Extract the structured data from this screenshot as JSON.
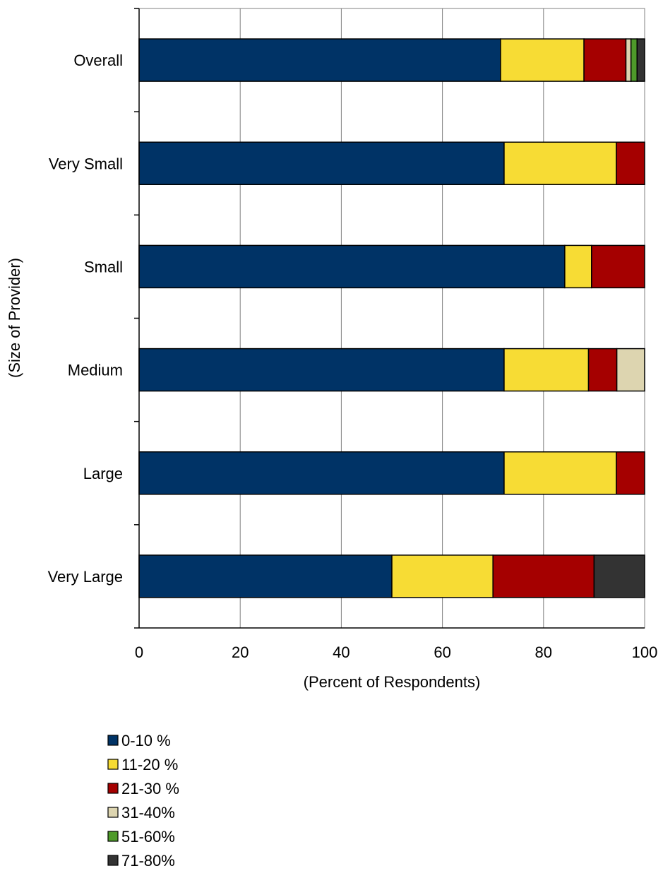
{
  "chart_data": {
    "type": "bar",
    "orientation": "horizontal",
    "stacked": true,
    "categories": [
      "Overall",
      "Very Small",
      "Small",
      "Medium",
      "Large",
      "Very Large"
    ],
    "series": [
      {
        "name": "0-10 %",
        "color": "#003366",
        "values": [
          71.5,
          72.2,
          84.2,
          72.2,
          72.2,
          50.0
        ]
      },
      {
        "name": "11-20 %",
        "color": "#F7DC34",
        "values": [
          16.5,
          22.2,
          5.3,
          16.7,
          22.2,
          20.0
        ]
      },
      {
        "name": "21-30 %",
        "color": "#A50000",
        "values": [
          8.3,
          5.6,
          10.5,
          5.6,
          5.6,
          20.0
        ]
      },
      {
        "name": "31-40%",
        "color": "#DDD5B0",
        "values": [
          1.0,
          0,
          0,
          5.5,
          0,
          0
        ]
      },
      {
        "name": "51-60%",
        "color": "#4E9A2A",
        "values": [
          1.2,
          0,
          0,
          0,
          0,
          0
        ]
      },
      {
        "name": "71-80%",
        "color": "#333333",
        "values": [
          1.5,
          0,
          0,
          0,
          0,
          10.0
        ]
      }
    ],
    "xlabel": "(Percent of Respondents)",
    "ylabel": "(Size of Provider)",
    "xlim": [
      0,
      100
    ],
    "xticks": [
      "0",
      "20",
      "40",
      "60",
      "80",
      "100"
    ],
    "grid": "vertical",
    "legend_position": "bottom"
  }
}
